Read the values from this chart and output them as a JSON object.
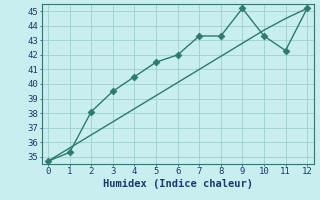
{
  "x": [
    0,
    1,
    2,
    3,
    4,
    5,
    6,
    7,
    8,
    9,
    10,
    11,
    12
  ],
  "line1_markers": [
    34.7,
    35.3,
    38.1,
    39.5,
    40.5,
    41.5,
    42.0,
    43.3,
    43.3,
    45.2,
    43.3,
    42.3,
    45.2
  ],
  "line2_straight": [
    34.7,
    35.6,
    36.5,
    37.4,
    38.3,
    39.2,
    40.1,
    41.0,
    41.9,
    42.8,
    43.7,
    44.5,
    45.2
  ],
  "line_color": "#2d7a6e",
  "bg_color": "#c8eef0",
  "grid_color": "#9ecfcf",
  "xlabel": "Humidex (Indice chaleur)",
  "ylim": [
    34.5,
    45.5
  ],
  "xlim": [
    -0.3,
    12.3
  ],
  "yticks": [
    35,
    36,
    37,
    38,
    39,
    40,
    41,
    42,
    43,
    44,
    45
  ],
  "xticks": [
    0,
    1,
    2,
    3,
    4,
    5,
    6,
    7,
    8,
    9,
    10,
    11,
    12
  ],
  "font_color": "#1a3a6e",
  "xlabel_fontsize": 7.5,
  "tick_fontsize": 6.5,
  "marker_size": 3.5,
  "line_width": 1.0
}
